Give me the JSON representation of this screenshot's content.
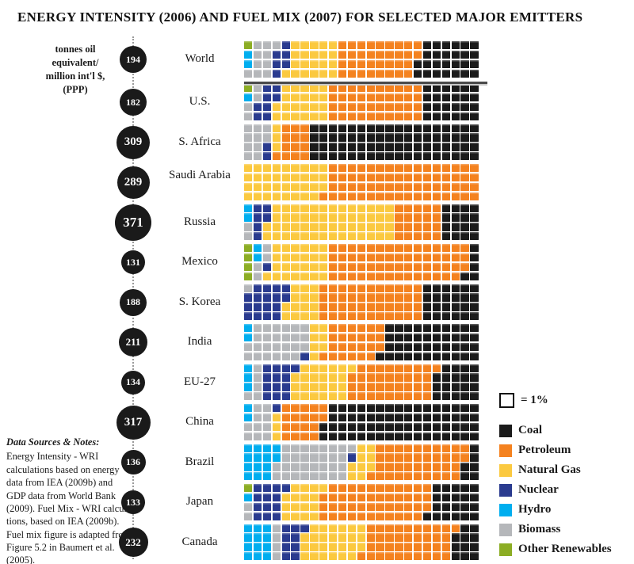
{
  "title": "ENERGY INTENSITY (2006) AND FUEL MIX (2007) FOR SELECTED MAJOR EMITTERS",
  "axis_note_lines": [
    "tonnes oil",
    "equivalent/",
    "million int'l $,",
    "(PPP)"
  ],
  "legend": {
    "unit_label": "= 1%",
    "items": [
      {
        "key": "coal",
        "label": "Coal"
      },
      {
        "key": "petroleum",
        "label": "Petroleum"
      },
      {
        "key": "natural_gas",
        "label": "Natural Gas"
      },
      {
        "key": "nuclear",
        "label": "Nuclear"
      },
      {
        "key": "hydro",
        "label": "Hydro"
      },
      {
        "key": "biomass",
        "label": "Biomass"
      },
      {
        "key": "other_renewables",
        "label": "Other Renewables"
      }
    ]
  },
  "notes": {
    "title": "Data Sources & Notes:",
    "lines": [
      "Energy Intensity - WRI",
      "calculations based on energy",
      "data from IEA (2009b) and",
      "GDP data from World Bank",
      "(2009). Fuel Mix - WRI calcula-",
      "tions, based on IEA (2009b).",
      "Fuel mix figure is adapted from",
      "Figure 5.2 in Baumert et al.",
      "(2005)."
    ]
  },
  "chart_data": {
    "type": "waffle",
    "square_unit_percent": 1,
    "squares_per_row": 100,
    "grid": {
      "columns": 25,
      "rows": 4
    },
    "energy_intensity_unit": "tonnes oil equivalent/million int'l $, (PPP)",
    "fuel_order_left_to_right": [
      "other_renewables",
      "hydro",
      "biomass",
      "nuclear",
      "natural_gas",
      "petroleum",
      "coal"
    ],
    "colors": {
      "coal": "#1b1b1b",
      "petroleum": "#f4821f",
      "natural_gas": "#fbc940",
      "nuclear": "#2a3b8f",
      "hydro": "#00aeef",
      "biomass": "#b5b7ba",
      "other_renewables": "#8cad24",
      "circle": "#1a1a1a"
    },
    "countries": [
      {
        "name": "World",
        "energy_intensity": 194,
        "fuel_mix": {
          "coal": 26,
          "petroleum": 34,
          "natural_gas": 21,
          "nuclear": 6,
          "hydro": 2,
          "biomass": 10,
          "other_renewables": 1
        }
      },
      {
        "name": "U.S.",
        "energy_intensity": 182,
        "fuel_mix": {
          "coal": 24,
          "petroleum": 40,
          "natural_gas": 22,
          "nuclear": 8,
          "hydro": 1,
          "biomass": 4,
          "other_renewables": 1
        }
      },
      {
        "name": "S. Africa",
        "energy_intensity": 309,
        "fuel_mix": {
          "coal": 72,
          "petroleum": 13,
          "natural_gas": 3,
          "nuclear": 2,
          "hydro": 0,
          "biomass": 10,
          "other_renewables": 0
        }
      },
      {
        "name": "Saudi Arabia",
        "energy_intensity": 289,
        "fuel_mix": {
          "coal": 0,
          "petroleum": 65,
          "natural_gas": 35,
          "nuclear": 0,
          "hydro": 0,
          "biomass": 0,
          "other_renewables": 0
        }
      },
      {
        "name": "Russia",
        "energy_intensity": 371,
        "fuel_mix": {
          "coal": 16,
          "petroleum": 20,
          "natural_gas": 54,
          "nuclear": 6,
          "hydro": 2,
          "biomass": 2,
          "other_renewables": 0
        }
      },
      {
        "name": "Mexico",
        "energy_intensity": 131,
        "fuel_mix": {
          "coal": 5,
          "petroleum": 59,
          "natural_gas": 25,
          "nuclear": 1,
          "hydro": 2,
          "biomass": 4,
          "other_renewables": 4
        }
      },
      {
        "name": "S. Korea",
        "energy_intensity": 188,
        "fuel_mix": {
          "coal": 24,
          "petroleum": 44,
          "natural_gas": 14,
          "nuclear": 17,
          "hydro": 0,
          "biomass": 1,
          "other_renewables": 0
        }
      },
      {
        "name": "India",
        "energy_intensity": 211,
        "fuel_mix": {
          "coal": 41,
          "petroleum": 24,
          "natural_gas": 7,
          "nuclear": 1,
          "hydro": 2,
          "biomass": 25,
          "other_renewables": 0
        }
      },
      {
        "name": "EU-27",
        "energy_intensity": 134,
        "fuel_mix": {
          "coal": 19,
          "petroleum": 36,
          "natural_gas": 24,
          "nuclear": 13,
          "hydro": 3,
          "biomass": 5,
          "other_renewables": 0
        }
      },
      {
        "name": "China",
        "energy_intensity": 317,
        "fuel_mix": {
          "coal": 66,
          "petroleum": 18,
          "natural_gas": 3,
          "nuclear": 1,
          "hydro": 2,
          "biomass": 10,
          "other_renewables": 0
        }
      },
      {
        "name": "Brazil",
        "energy_intensity": 136,
        "fuel_mix": {
          "coal": 6,
          "petroleum": 39,
          "natural_gas": 9,
          "nuclear": 1,
          "hydro": 14,
          "biomass": 31,
          "other_renewables": 0
        }
      },
      {
        "name": "Japan",
        "energy_intensity": 133,
        "fuel_mix": {
          "coal": 21,
          "petroleum": 46,
          "natural_gas": 16,
          "nuclear": 13,
          "hydro": 1,
          "biomass": 2,
          "other_renewables": 1
        }
      },
      {
        "name": "Canada",
        "energy_intensity": 232,
        "fuel_mix": {
          "coal": 11,
          "petroleum": 38,
          "natural_gas": 26,
          "nuclear": 9,
          "hydro": 12,
          "biomass": 4,
          "other_renewables": 0
        }
      }
    ]
  }
}
